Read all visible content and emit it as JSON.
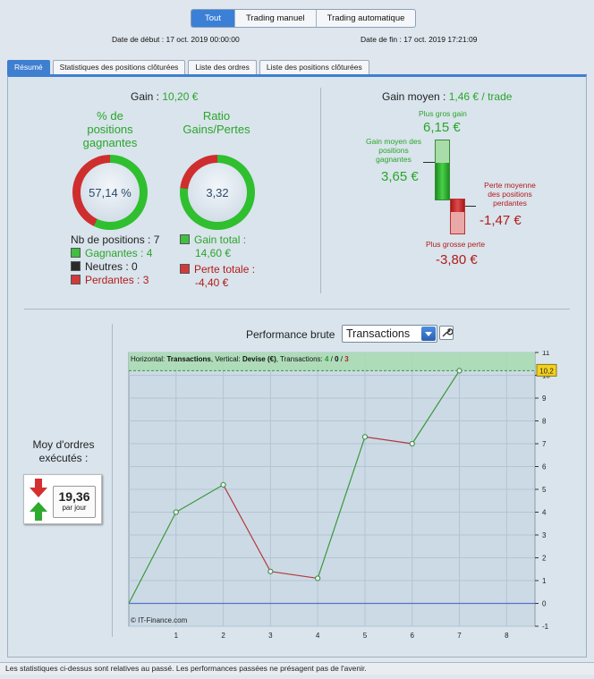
{
  "segments": [
    {
      "label": "Tout",
      "active": true
    },
    {
      "label": "Trading manuel",
      "active": false
    },
    {
      "label": "Trading automatique",
      "active": false
    }
  ],
  "dates": {
    "start": "Date de début : 17 oct. 2019 00:00:00",
    "end": "Date de fin : 17 oct. 2019 17:21:09"
  },
  "tabs": [
    {
      "label": "Résumé",
      "active": true
    },
    {
      "label": "Statistiques des positions clôturées",
      "active": false
    },
    {
      "label": "Liste des ordres",
      "active": false
    },
    {
      "label": "Liste des positions clôturées",
      "active": false
    }
  ],
  "summary": {
    "gain_label": "Gain :",
    "gain_value": "10,20 €",
    "pct_title": "% de\npositions\ngagnantes",
    "pct_value": "57,14 %",
    "pct_fraction": 0.5714,
    "ratio_title": "Ratio\nGains/Pertes",
    "ratio_value": "3,32",
    "ratio_fraction": 0.7685,
    "nb_positions": "Nb de positions : 7",
    "winners": "Gagnantes : 4",
    "neutral": "Neutres : 0",
    "losers": "Perdantes : 3",
    "gain_total_label": "Gain total :",
    "gain_total_value": "14,60 €",
    "loss_total_label": "Perte totale :",
    "loss_total_value": "-4,40 €"
  },
  "avg": {
    "title": "Gain moyen :",
    "value": "1,46 € / trade",
    "max_gain_label": "Plus gros gain",
    "max_gain": "6,15 €",
    "avg_win_label": "Gain moyen des\npositions\ngagnantes",
    "avg_win": "3,65 €",
    "avg_loss_label": "Perte moyenne\ndes positions\nperdantes",
    "avg_loss": "-1,47 €",
    "max_loss_label": "Plus grosse perte",
    "max_loss": "-3,80 €"
  },
  "orders": {
    "title": "Moy d'ordres\nexécutés :",
    "value": "19,36",
    "unit": "par jour"
  },
  "perf": {
    "title": "Performance brute",
    "select_value": "Transactions"
  },
  "chart_data": {
    "type": "line",
    "header_parts": [
      "Horizontal: ",
      "Transactions",
      ", Vertical: ",
      "Devise (€)",
      ", Transactions: ",
      "4",
      " / ",
      "0",
      " / ",
      "3"
    ],
    "watermark": "© IT-Finance.com",
    "x": [
      0,
      1,
      2,
      3,
      4,
      5,
      6,
      7
    ],
    "y": [
      0,
      4.0,
      5.2,
      1.4,
      1.1,
      7.3,
      7.0,
      10.2
    ],
    "xlim": [
      0,
      8.6
    ],
    "ylim": [
      -1,
      11
    ],
    "xticks": [
      1,
      2,
      3,
      4,
      5,
      6,
      7,
      8
    ],
    "yticks": [
      -1,
      0,
      1,
      2,
      3,
      4,
      5,
      6,
      7,
      8,
      9,
      10,
      11
    ],
    "last_value_label": "10,2",
    "colors": {
      "up": "#3a9a3a",
      "down": "#b23a3a",
      "zero": "#5b6fd0",
      "band": "#a8dcb0"
    }
  },
  "footer": "Les statistiques ci-dessus sont relatives au passé. Les performances passées ne présagent pas de l'avenir."
}
